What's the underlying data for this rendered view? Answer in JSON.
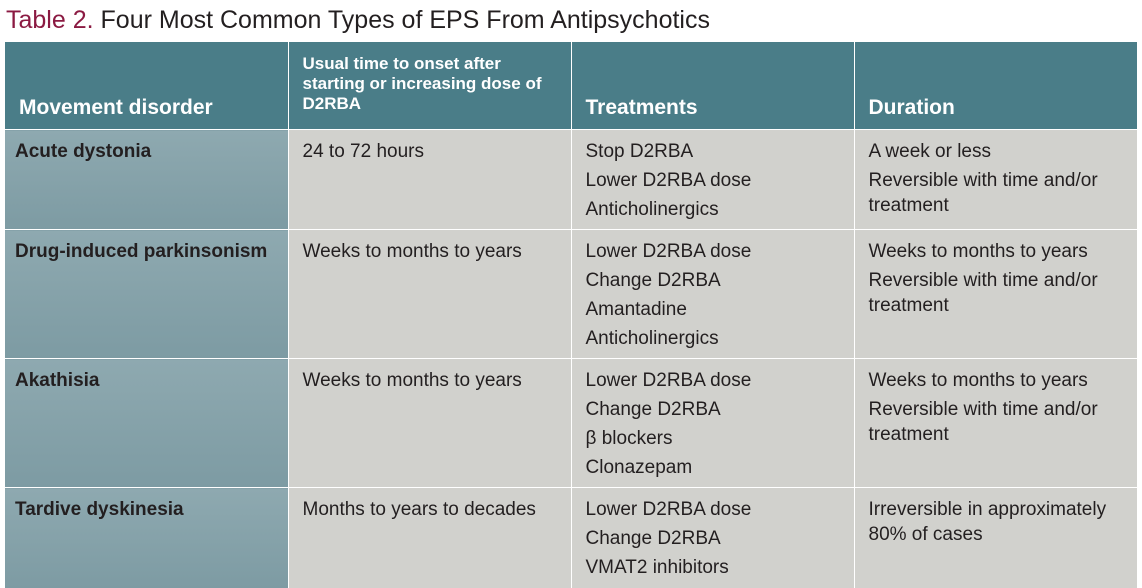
{
  "title": {
    "label": "Table 2.",
    "text": "Four Most Common Types of EPS From Antipsychotics"
  },
  "table": {
    "headers": [
      "Movement disorder",
      "Usual time to onset after starting or increasing dose of D2RBA",
      "Treatments",
      "Duration"
    ],
    "rows": [
      [
        "Acute dystonia",
        [
          "24 to 72 hours"
        ],
        [
          "Stop D2RBA",
          "Lower D2RBA dose",
          "Anticholinergics"
        ],
        [
          "A week or less",
          "Reversible with time and/or treatment"
        ]
      ],
      [
        "Drug-induced parkinsonism",
        [
          "Weeks to months to years"
        ],
        [
          "Lower D2RBA dose",
          "Change D2RBA",
          "Amantadine",
          "Anticholinergics"
        ],
        [
          "Weeks to months to years",
          "Reversible with time and/or treatment"
        ]
      ],
      [
        "Akathisia",
        [
          "Weeks to months to years"
        ],
        [
          "Lower D2RBA dose",
          "Change D2RBA",
          "β blockers",
          "Clonazepam"
        ],
        [
          "Weeks to months to years",
          "Reversible with time and/or treatment"
        ]
      ],
      [
        "Tardive dyskinesia",
        [
          "Months to years to decades"
        ],
        [
          "Lower D2RBA dose",
          "Change D2RBA",
          "VMAT2 inhibitors"
        ],
        [
          "Irreversible in approximately 80% of cases"
        ]
      ]
    ]
  }
}
